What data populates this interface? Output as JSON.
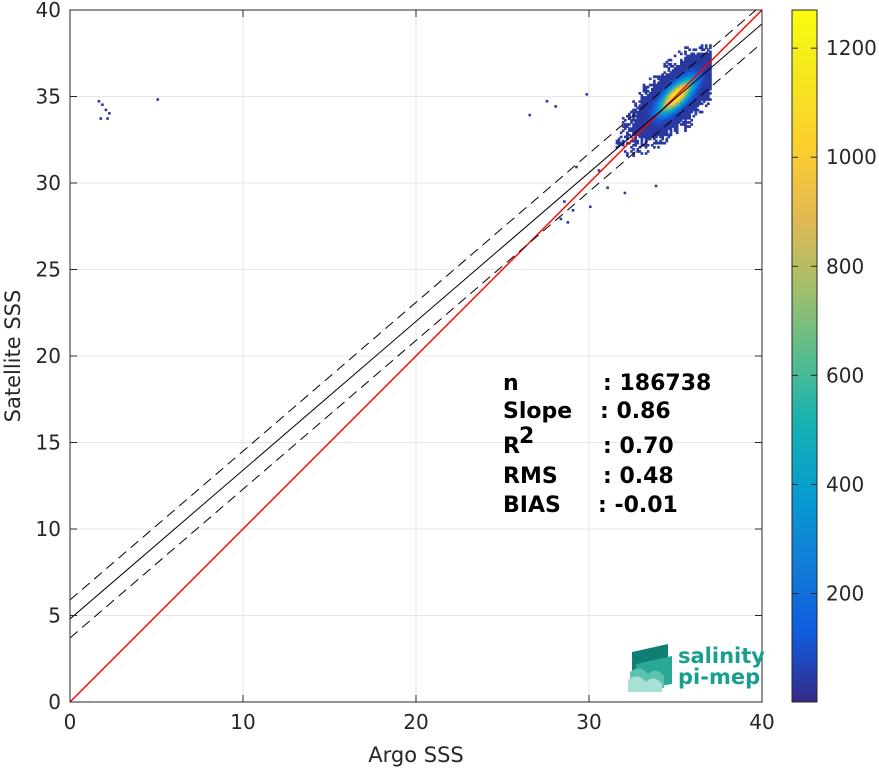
{
  "chart_data": {
    "type": "heatmap",
    "xlabel": "Argo SSS",
    "ylabel": "Satellite SSS",
    "xlim": [
      0,
      40
    ],
    "ylim": [
      0,
      40
    ],
    "xticks": [
      0,
      10,
      20,
      30,
      40
    ],
    "yticks": [
      0,
      5,
      10,
      15,
      20,
      25,
      30,
      35,
      40
    ],
    "xtick_labels": [
      "0",
      "10",
      "20",
      "30",
      "40"
    ],
    "ytick_labels": [
      "0",
      "5",
      "10",
      "15",
      "20",
      "25",
      "30",
      "35",
      "40"
    ],
    "grid": true,
    "colormap": "parula",
    "colorbar": {
      "min": 1,
      "max": 1270,
      "ticks": [
        200,
        400,
        600,
        800,
        1000,
        1200
      ],
      "tick_labels": [
        "200",
        "400",
        "600",
        "800",
        "1000",
        "1200"
      ]
    },
    "density": {
      "core_center": [
        35.0,
        35.0
      ],
      "core_peak": 1270,
      "cloud_x_range": [
        29.5,
        37.0
      ],
      "cloud_y_range": [
        29.5,
        38.0
      ],
      "outliers": [
        [
          1.6,
          34.8
        ],
        [
          1.8,
          34.6
        ],
        [
          2.0,
          34.3
        ],
        [
          2.2,
          34.1
        ],
        [
          2.1,
          33.8
        ],
        [
          1.7,
          33.8
        ],
        [
          5.0,
          34.9
        ],
        [
          27.5,
          34.8
        ],
        [
          28.0,
          34.5
        ],
        [
          26.5,
          34.0
        ],
        [
          29.8,
          35.2
        ],
        [
          31.0,
          29.8
        ],
        [
          30.5,
          30.8
        ],
        [
          29.2,
          31.0
        ],
        [
          28.5,
          29.0
        ],
        [
          29.0,
          28.5
        ],
        [
          28.3,
          28.0
        ],
        [
          30.0,
          28.7
        ],
        [
          33.8,
          29.9
        ],
        [
          32.0,
          29.5
        ],
        [
          28.7,
          27.8
        ]
      ]
    },
    "lines": [
      {
        "name": "identity",
        "color": "#ff0000",
        "style": "solid",
        "slope": 1.0,
        "intercept": 0.0
      },
      {
        "name": "regression",
        "color": "#000000",
        "style": "solid",
        "slope": 0.86,
        "intercept": 4.8
      },
      {
        "name": "regression-upper",
        "color": "#000000",
        "style": "dashed",
        "slope": 0.86,
        "intercept": 5.9
      },
      {
        "name": "regression-lower",
        "color": "#000000",
        "style": "dashed",
        "slope": 0.86,
        "intercept": 3.7
      }
    ],
    "stats": [
      {
        "label": "n",
        "value": ": 186738"
      },
      {
        "label": "Slope",
        "value": ": 0.86"
      },
      {
        "label": "R",
        "sup": "2",
        "value": ": 0.70"
      },
      {
        "label": "RMS",
        "value": ": 0.48"
      },
      {
        "label": "BIAS",
        "value": ": -0.01"
      }
    ]
  },
  "logo": {
    "line1": "salinity",
    "line2": "pi-mep",
    "color": "#1a9e8f"
  }
}
